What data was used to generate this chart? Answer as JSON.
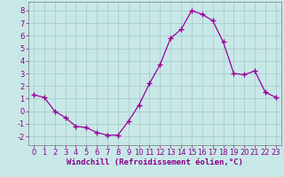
{
  "x": [
    0,
    1,
    2,
    3,
    4,
    5,
    6,
    7,
    8,
    9,
    10,
    11,
    12,
    13,
    14,
    15,
    16,
    17,
    18,
    19,
    20,
    21,
    22,
    23
  ],
  "y": [
    1.3,
    1.1,
    0.0,
    -0.5,
    -1.2,
    -1.3,
    -1.7,
    -1.9,
    -1.9,
    -0.8,
    0.5,
    2.2,
    3.7,
    5.8,
    6.5,
    8.0,
    7.7,
    7.2,
    5.5,
    3.0,
    2.9,
    3.2,
    1.5,
    1.1
  ],
  "line_color": "#990099",
  "marker": "+",
  "marker_size": 4,
  "bg_color": "#c8e8e8",
  "grid_color": "#aacccc",
  "xlabel": "Windchill (Refroidissement éolien,°C)",
  "xlabel_color": "#880088",
  "xlabel_fontsize": 6.5,
  "tick_fontsize": 6.0,
  "tick_color": "#880088",
  "xlim": [
    -0.5,
    23.5
  ],
  "ylim": [
    -2.7,
    8.7
  ],
  "yticks": [
    -2,
    -1,
    0,
    1,
    2,
    3,
    4,
    5,
    6,
    7,
    8
  ],
  "xticks": [
    0,
    1,
    2,
    3,
    4,
    5,
    6,
    7,
    8,
    9,
    10,
    11,
    12,
    13,
    14,
    15,
    16,
    17,
    18,
    19,
    20,
    21,
    22,
    23
  ]
}
